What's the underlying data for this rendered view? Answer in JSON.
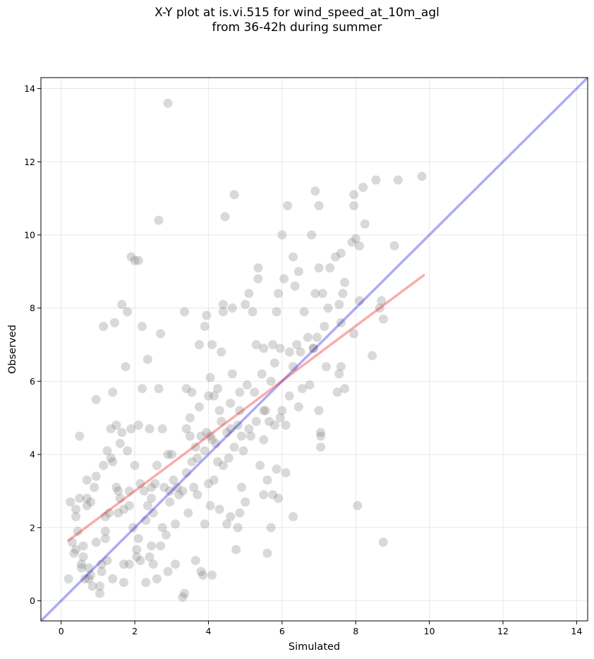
{
  "chart_data": {
    "type": "scatter",
    "title_line1": "X-Y plot at is.vi.515 for wind_speed_at_10m_agl",
    "title_line2": "from 36-42h during summer",
    "xlabel": "Simulated",
    "ylabel": "Observed",
    "xlim": [
      -0.55,
      14.3
    ],
    "ylim": [
      -0.55,
      14.3
    ],
    "xticks": [
      "0",
      "2",
      "4",
      "6",
      "8",
      "10",
      "12",
      "14"
    ],
    "yticks": [
      "0",
      "2",
      "4",
      "6",
      "8",
      "10",
      "12",
      "14"
    ],
    "grid": true,
    "colors": {
      "points": "#808080",
      "one_to_one": "#0000ee",
      "fit": "#ee1111"
    },
    "one_to_one_line": {
      "x": [
        -0.55,
        14.3
      ],
      "y": [
        -0.55,
        14.3
      ]
    },
    "fit_line": {
      "x": [
        0.2,
        9.85
      ],
      "y": [
        1.65,
        8.9
      ]
    },
    "points": [
      [
        0.2,
        0.6
      ],
      [
        0.25,
        2.7
      ],
      [
        0.35,
        1.3
      ],
      [
        0.4,
        1.4
      ],
      [
        0.4,
        2.3
      ],
      [
        0.45,
        1.9
      ],
      [
        0.4,
        2.5
      ],
      [
        0.5,
        4.5
      ],
      [
        0.5,
        2.8
      ],
      [
        0.55,
        0.9
      ],
      [
        0.55,
        1.0
      ],
      [
        0.6,
        1.5
      ],
      [
        0.6,
        1.2
      ],
      [
        0.65,
        0.6
      ],
      [
        0.7,
        2.6
      ],
      [
        0.7,
        2.8
      ],
      [
        0.7,
        3.3
      ],
      [
        0.75,
        0.9
      ],
      [
        0.8,
        2.7
      ],
      [
        0.8,
        0.7
      ],
      [
        0.85,
        0.4
      ],
      [
        0.9,
        3.1
      ],
      [
        0.95,
        1.6
      ],
      [
        0.95,
        3.4
      ],
      [
        0.95,
        5.5
      ],
      [
        1.05,
        0.2
      ],
      [
        1.05,
        0.4
      ],
      [
        1.1,
        0.8
      ],
      [
        1.1,
        1.0
      ],
      [
        1.15,
        7.5
      ],
      [
        1.15,
        3.7
      ],
      [
        1.2,
        1.7
      ],
      [
        1.2,
        1.9
      ],
      [
        1.2,
        2.3
      ],
      [
        1.25,
        1.1
      ],
      [
        1.25,
        4.1
      ],
      [
        1.3,
        2.4
      ],
      [
        1.35,
        3.9
      ],
      [
        1.35,
        4.7
      ],
      [
        1.4,
        0.6
      ],
      [
        1.4,
        3.8
      ],
      [
        1.4,
        5.7
      ],
      [
        1.45,
        7.6
      ],
      [
        1.5,
        3.1
      ],
      [
        1.5,
        4.8
      ],
      [
        1.55,
        2.4
      ],
      [
        1.55,
        3.0
      ],
      [
        1.6,
        2.8
      ],
      [
        1.6,
        4.3
      ],
      [
        1.65,
        8.1
      ],
      [
        1.65,
        4.6
      ],
      [
        1.7,
        0.5
      ],
      [
        1.7,
        1.0
      ],
      [
        1.7,
        2.5
      ],
      [
        1.75,
        6.4
      ],
      [
        1.8,
        4.1
      ],
      [
        1.8,
        7.9
      ],
      [
        1.85,
        1.0
      ],
      [
        1.85,
        2.6
      ],
      [
        1.9,
        4.7
      ],
      [
        1.9,
        9.4
      ],
      [
        1.95,
        2.0
      ],
      [
        2.0,
        9.3
      ],
      [
        2.0,
        3.7
      ],
      [
        2.05,
        1.2
      ],
      [
        2.05,
        1.4
      ],
      [
        2.1,
        1.7
      ],
      [
        2.1,
        4.8
      ],
      [
        2.1,
        9.3
      ],
      [
        2.15,
        3.2
      ],
      [
        2.15,
        1.1
      ],
      [
        2.2,
        5.8
      ],
      [
        2.2,
        7.5
      ],
      [
        2.25,
        3.0
      ],
      [
        2.3,
        2.2
      ],
      [
        2.3,
        0.5
      ],
      [
        2.35,
        2.6
      ],
      [
        2.35,
        6.6
      ],
      [
        2.4,
        1.2
      ],
      [
        2.4,
        4.7
      ],
      [
        2.45,
        1.5
      ],
      [
        2.45,
        2.8
      ],
      [
        2.5,
        2.4
      ],
      [
        2.5,
        1.0
      ],
      [
        2.55,
        3.2
      ],
      [
        2.6,
        0.6
      ],
      [
        2.6,
        3.7
      ],
      [
        2.65,
        10.4
      ],
      [
        2.65,
        5.8
      ],
      [
        2.7,
        1.5
      ],
      [
        2.7,
        7.3
      ],
      [
        2.75,
        4.7
      ],
      [
        2.75,
        2.0
      ],
      [
        2.8,
        3.1
      ],
      [
        2.85,
        1.8
      ],
      [
        2.9,
        13.6
      ],
      [
        2.9,
        4.0
      ],
      [
        2.9,
        0.8
      ],
      [
        2.95,
        2.7
      ],
      [
        3.0,
        4.0
      ],
      [
        3.05,
        3.3
      ],
      [
        3.1,
        1.0
      ],
      [
        3.1,
        2.1
      ],
      [
        3.15,
        3.1
      ],
      [
        3.2,
        2.9
      ],
      [
        3.3,
        0.1
      ],
      [
        3.3,
        3.0
      ],
      [
        3.35,
        0.2
      ],
      [
        3.35,
        7.9
      ],
      [
        3.4,
        5.8
      ],
      [
        3.4,
        4.7
      ],
      [
        3.4,
        3.5
      ],
      [
        3.5,
        4.5
      ],
      [
        3.5,
        5.0
      ],
      [
        3.55,
        3.8
      ],
      [
        3.55,
        5.7
      ],
      [
        3.6,
        3.1
      ],
      [
        3.65,
        1.1
      ],
      [
        3.65,
        4.2
      ],
      [
        3.7,
        3.9
      ],
      [
        3.7,
        2.9
      ],
      [
        3.75,
        5.3
      ],
      [
        3.75,
        7.0
      ],
      [
        3.8,
        0.8
      ],
      [
        3.8,
        4.5
      ],
      [
        3.85,
        0.7
      ],
      [
        3.9,
        7.5
      ],
      [
        3.9,
        2.1
      ],
      [
        3.9,
        4.1
      ],
      [
        3.95,
        4.6
      ],
      [
        3.95,
        7.8
      ],
      [
        4.0,
        3.2
      ],
      [
        4.0,
        5.6
      ],
      [
        4.05,
        6.1
      ],
      [
        4.05,
        2.6
      ],
      [
        4.1,
        7.0
      ],
      [
        4.1,
        4.4
      ],
      [
        4.1,
        0.7
      ],
      [
        4.15,
        3.3
      ],
      [
        4.15,
        5.6
      ],
      [
        4.2,
        4.3
      ],
      [
        4.25,
        3.8
      ],
      [
        4.25,
        5.8
      ],
      [
        4.3,
        2.5
      ],
      [
        4.3,
        5.2
      ],
      [
        4.35,
        4.9
      ],
      [
        4.35,
        6.8
      ],
      [
        4.4,
        8.1
      ],
      [
        4.4,
        7.9
      ],
      [
        4.4,
        3.7
      ],
      [
        4.45,
        10.5
      ],
      [
        4.5,
        2.1
      ],
      [
        4.5,
        4.6
      ],
      [
        4.55,
        3.9
      ],
      [
        4.6,
        5.4
      ],
      [
        4.6,
        2.3
      ],
      [
        4.65,
        6.2
      ],
      [
        4.65,
        8.0
      ],
      [
        4.7,
        11.1
      ],
      [
        4.7,
        4.2
      ],
      [
        4.75,
        1.4
      ],
      [
        4.8,
        4.8
      ],
      [
        4.8,
        2.0
      ],
      [
        4.85,
        5.7
      ],
      [
        4.85,
        2.4
      ],
      [
        4.9,
        3.1
      ],
      [
        4.9,
        4.5
      ],
      [
        4.95,
        4.1
      ],
      [
        5.0,
        8.1
      ],
      [
        5.0,
        2.7
      ],
      [
        5.05,
        5.9
      ],
      [
        5.1,
        4.7
      ],
      [
        5.1,
        8.4
      ],
      [
        5.15,
        4.5
      ],
      [
        5.2,
        7.9
      ],
      [
        5.25,
        5.7
      ],
      [
        5.3,
        7.0
      ],
      [
        5.3,
        4.9
      ],
      [
        5.35,
        8.8
      ],
      [
        5.35,
        9.1
      ],
      [
        5.4,
        3.7
      ],
      [
        5.45,
        6.2
      ],
      [
        5.5,
        2.9
      ],
      [
        5.5,
        4.4
      ],
      [
        5.5,
        6.9
      ],
      [
        5.55,
        5.2
      ],
      [
        5.6,
        3.3
      ],
      [
        5.6,
        1.3
      ],
      [
        5.65,
        4.9
      ],
      [
        5.7,
        2.0
      ],
      [
        5.7,
        6.0
      ],
      [
        5.75,
        7.0
      ],
      [
        5.75,
        2.9
      ],
      [
        5.8,
        6.5
      ],
      [
        5.8,
        4.8
      ],
      [
        5.85,
        7.9
      ],
      [
        5.85,
        3.6
      ],
      [
        5.9,
        8.4
      ],
      [
        5.9,
        2.8
      ],
      [
        5.95,
        5.0
      ],
      [
        5.95,
        6.9
      ],
      [
        6.0,
        5.2
      ],
      [
        6.0,
        10.0
      ],
      [
        6.05,
        8.8
      ],
      [
        6.1,
        3.5
      ],
      [
        6.1,
        4.8
      ],
      [
        6.15,
        10.8
      ],
      [
        6.2,
        6.8
      ],
      [
        6.2,
        5.6
      ],
      [
        6.3,
        9.4
      ],
      [
        6.3,
        2.3
      ],
      [
        6.3,
        6.4
      ],
      [
        6.35,
        8.6
      ],
      [
        6.4,
        7.0
      ],
      [
        6.45,
        9.0
      ],
      [
        6.45,
        5.3
      ],
      [
        6.5,
        6.8
      ],
      [
        6.55,
        5.8
      ],
      [
        6.6,
        7.9
      ],
      [
        6.7,
        7.2
      ],
      [
        6.75,
        5.9
      ],
      [
        6.8,
        10.0
      ],
      [
        6.85,
        6.9
      ],
      [
        6.9,
        11.2
      ],
      [
        6.9,
        8.4
      ],
      [
        6.95,
        7.2
      ],
      [
        7.0,
        5.2
      ],
      [
        7.0,
        10.8
      ],
      [
        7.0,
        9.1
      ],
      [
        7.05,
        4.5
      ],
      [
        7.05,
        4.6
      ],
      [
        7.05,
        4.2
      ],
      [
        7.1,
        8.4
      ],
      [
        7.15,
        7.5
      ],
      [
        7.2,
        6.4
      ],
      [
        7.25,
        8.0
      ],
      [
        7.3,
        9.1
      ],
      [
        7.45,
        9.4
      ],
      [
        7.5,
        5.7
      ],
      [
        7.55,
        6.2
      ],
      [
        7.55,
        8.1
      ],
      [
        7.6,
        9.5
      ],
      [
        7.6,
        6.4
      ],
      [
        7.6,
        7.6
      ],
      [
        7.65,
        8.4
      ],
      [
        7.7,
        8.7
      ],
      [
        7.7,
        5.8
      ],
      [
        7.9,
        9.8
      ],
      [
        7.95,
        7.3
      ],
      [
        7.95,
        11.1
      ],
      [
        7.95,
        10.8
      ],
      [
        8.0,
        9.9
      ],
      [
        8.05,
        2.6
      ],
      [
        8.1,
        8.2
      ],
      [
        8.1,
        9.7
      ],
      [
        8.2,
        11.3
      ],
      [
        8.25,
        10.3
      ],
      [
        8.45,
        6.7
      ],
      [
        8.55,
        11.5
      ],
      [
        8.65,
        8.0
      ],
      [
        8.7,
        8.2
      ],
      [
        8.75,
        7.7
      ],
      [
        8.75,
        1.6
      ],
      [
        9.05,
        9.7
      ],
      [
        9.15,
        11.5
      ],
      [
        9.8,
        11.6
      ],
      [
        0.3,
        1.6
      ],
      [
        0.75,
        0.6
      ],
      [
        2.45,
        3.1
      ],
      [
        4.6,
        4.7
      ],
      [
        5.5,
        5.2
      ],
      [
        4.05,
        4.5
      ],
      [
        3.45,
        2.4
      ],
      [
        1.85,
        3.0
      ],
      [
        2.95,
        3.0
      ],
      [
        4.85,
        5.2
      ],
      [
        6.85,
        6.9
      ]
    ]
  }
}
